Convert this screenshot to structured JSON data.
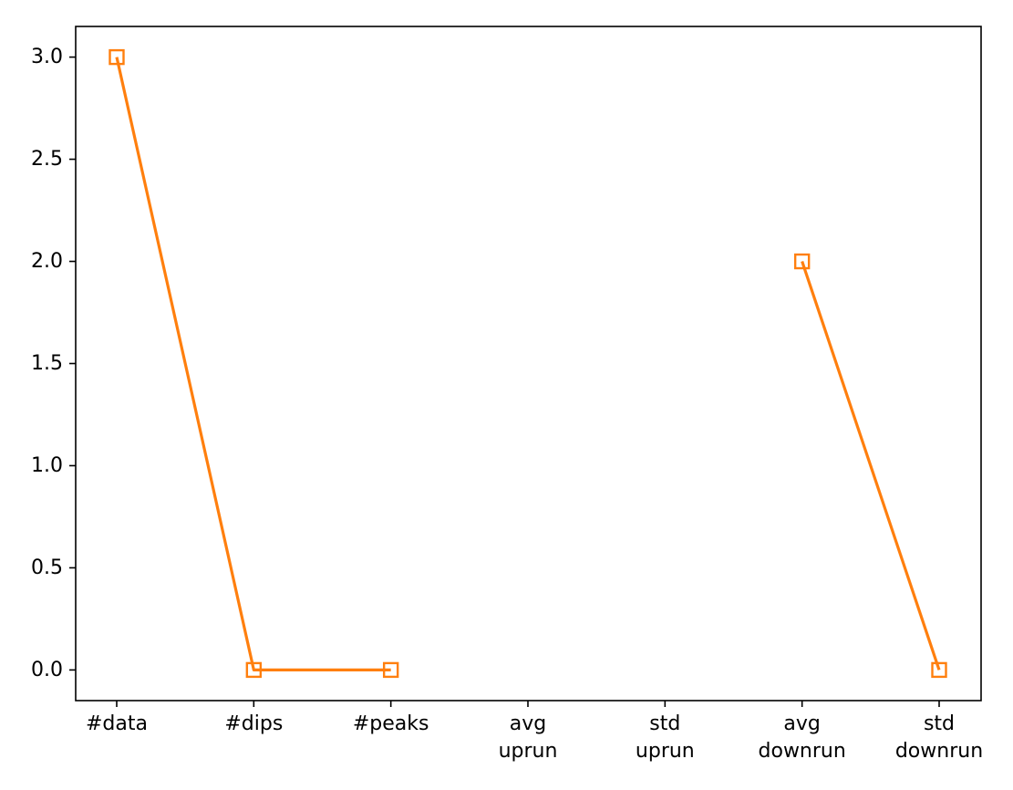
{
  "chart_data": {
    "type": "line",
    "title": "",
    "xlabel": "",
    "ylabel": "",
    "categories": [
      [
        "#data"
      ],
      [
        "#dips"
      ],
      [
        "#peaks"
      ],
      [
        "avg",
        "uprun"
      ],
      [
        "std",
        "uprun"
      ],
      [
        "avg",
        "downrun"
      ],
      [
        "std",
        "downrun"
      ]
    ],
    "series": [
      {
        "values": [
          3.0,
          0.0,
          0.0,
          null,
          null,
          2.0,
          0.0
        ],
        "color": "#ff7f0e",
        "marker": "square"
      }
    ],
    "ylim": [
      -0.15,
      3.15
    ],
    "yticks": [
      "0.0",
      "0.5",
      "1.0",
      "1.5",
      "2.0",
      "2.5",
      "3.0"
    ],
    "grid": false,
    "legend": "none"
  }
}
